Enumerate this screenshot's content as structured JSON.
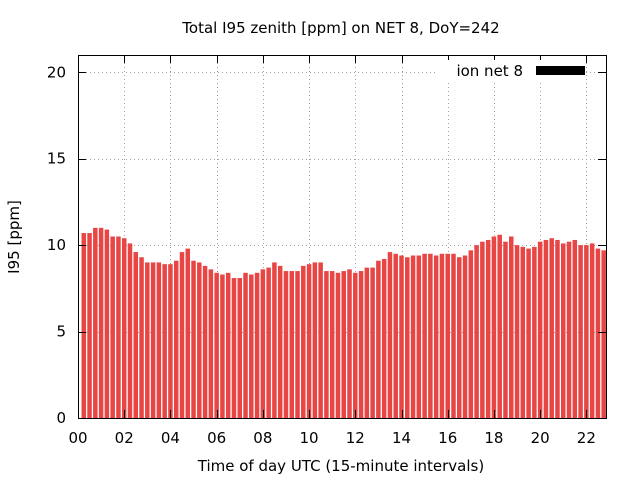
{
  "chart_data": {
    "type": "bar",
    "title": "Total I95 zenith [ppm] on NET 8, DoY=242",
    "xlabel": "Time of day UTC (15-minute intervals)",
    "ylabel": "I95 [ppm]",
    "ylim": [
      0,
      21
    ],
    "xlim": [
      0,
      22.85
    ],
    "yticks": [
      "0",
      "5",
      "10",
      "15",
      "20"
    ],
    "xticks": [
      "00",
      "02",
      "04",
      "06",
      "08",
      "10",
      "12",
      "14",
      "16",
      "18",
      "20",
      "22"
    ],
    "grid": true,
    "legend_position": "top-right",
    "bar_color": "#e84545",
    "legend_color": "#000000",
    "series": [
      {
        "name": "ion net 8",
        "x": [
          0.25,
          0.5,
          0.75,
          1.0,
          1.25,
          1.5,
          1.75,
          2.0,
          2.25,
          2.5,
          2.75,
          3.0,
          3.25,
          3.5,
          3.75,
          4.0,
          4.25,
          4.5,
          4.75,
          5.0,
          5.25,
          5.5,
          5.75,
          6.0,
          6.25,
          6.5,
          6.75,
          7.0,
          7.25,
          7.5,
          7.75,
          8.0,
          8.25,
          8.5,
          8.75,
          9.0,
          9.25,
          9.5,
          9.75,
          10.0,
          10.25,
          10.5,
          10.75,
          11.0,
          11.25,
          11.5,
          11.75,
          12.0,
          12.25,
          12.5,
          12.75,
          13.0,
          13.25,
          13.5,
          13.75,
          14.0,
          14.25,
          14.5,
          14.75,
          15.0,
          15.25,
          15.5,
          15.75,
          16.0,
          16.25,
          16.5,
          16.75,
          17.0,
          17.25,
          17.5,
          17.75,
          18.0,
          18.25,
          18.5,
          18.75,
          19.0,
          19.25,
          19.5,
          19.75,
          20.0,
          20.25,
          20.5,
          20.75,
          21.0,
          21.25,
          21.5,
          21.75,
          22.0,
          22.25,
          22.5,
          22.75
        ],
        "values": [
          10.7,
          10.7,
          11.0,
          11.0,
          10.9,
          10.5,
          10.5,
          10.4,
          10.1,
          9.6,
          9.3,
          9.0,
          9.0,
          9.0,
          8.9,
          8.9,
          9.1,
          9.6,
          9.8,
          9.1,
          9.0,
          8.8,
          8.6,
          8.4,
          8.3,
          8.4,
          8.1,
          8.1,
          8.4,
          8.3,
          8.4,
          8.6,
          8.7,
          9.0,
          8.8,
          8.5,
          8.5,
          8.5,
          8.8,
          8.9,
          9.0,
          9.0,
          8.5,
          8.5,
          8.4,
          8.5,
          8.6,
          8.4,
          8.5,
          8.7,
          8.7,
          9.1,
          9.2,
          9.6,
          9.5,
          9.4,
          9.3,
          9.4,
          9.4,
          9.5,
          9.5,
          9.4,
          9.5,
          9.5,
          9.5,
          9.3,
          9.4,
          9.7,
          10.0,
          10.2,
          10.3,
          10.5,
          10.6,
          10.2,
          10.5,
          10.0,
          9.9,
          9.8,
          9.9,
          10.2,
          10.3,
          10.4,
          10.3,
          10.1,
          10.2,
          10.3,
          10.0,
          10.0,
          10.1,
          9.8,
          9.7
        ]
      }
    ]
  }
}
